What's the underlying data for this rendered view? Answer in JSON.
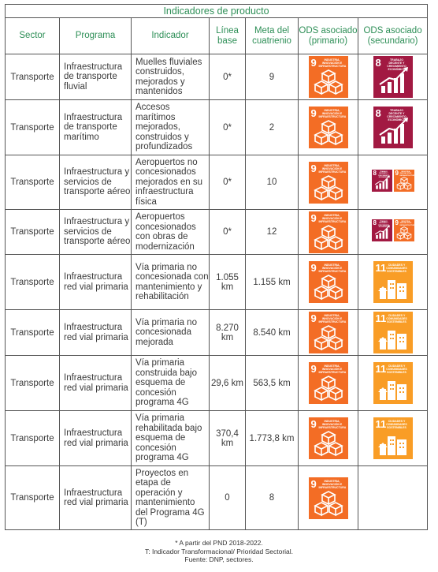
{
  "table": {
    "caption": "Indicadores de producto",
    "headers": {
      "sector": "Sector",
      "programa": "Programa",
      "indicador": "Indicador",
      "linea_base": "Línea base",
      "meta": "Meta del cuatrienio",
      "ods_primario": "ODS asociado (primario)",
      "ods_secundario": "ODS asociado (secundario)"
    },
    "rows": [
      {
        "sector": "Transporte",
        "programa": "Infraestructura de transporte fluvial",
        "indicador": "Muelles fluviales construidos, mejorados y mantenidos",
        "linea_base": "0*",
        "meta": "9",
        "primary": [
          "ods9"
        ],
        "secondary": [
          "ods8"
        ]
      },
      {
        "sector": "Transporte",
        "programa": "Infraestructura de transporte marítimo",
        "indicador": "Accesos marítimos mejorados, construidos y profundizados",
        "linea_base": "0*",
        "meta": "2",
        "primary": [
          "ods9"
        ],
        "secondary": [
          "ods8"
        ]
      },
      {
        "sector": "Transporte",
        "programa": "Infraestructura y servicios de transporte aéreo",
        "indicador": "Aeropuertos no concesionados mejorados en su infraestructura física",
        "linea_base": "0*",
        "meta": "10",
        "primary": [
          "ods9"
        ],
        "secondary": [
          "ods8",
          "ods9"
        ]
      },
      {
        "sector": "Transporte",
        "programa": "Infraestructura y servicios de transporte aéreo",
        "indicador": "Aeropuertos concesionados con obras de modernización",
        "linea_base": "0*",
        "meta": "12",
        "primary": [
          "ods9"
        ],
        "secondary": [
          "ods8",
          "ods9"
        ]
      },
      {
        "sector": "Transporte",
        "programa": "Infraestructura red vial primaria",
        "indicador": "Vía primaria no concesionada con mantenimiento y rehabilitación",
        "linea_base": "1.055 km",
        "meta": "1.155 km",
        "primary": [
          "ods9"
        ],
        "secondary": [
          "ods11"
        ]
      },
      {
        "sector": "Transporte",
        "programa": "Infraestructura red vial primaria",
        "indicador": "Vía primaria no concesionada mejorada",
        "linea_base": "8.270 km",
        "meta": "8.540 km",
        "primary": [
          "ods9"
        ],
        "secondary": [
          "ods11"
        ]
      },
      {
        "sector": "Transporte",
        "programa": "Infraestructura red vial primaria",
        "indicador": "Vía primaria construida bajo esquema de concesión programa 4G",
        "linea_base": "29,6 km",
        "meta": "563,5 km",
        "primary": [
          "ods9"
        ],
        "secondary": [
          "ods11"
        ]
      },
      {
        "sector": "Transporte",
        "programa": "Infraestructura red vial primaria",
        "indicador": "Vía primaria rehabilitada bajo esquema de concesión programa 4G",
        "linea_base": "370,4 km",
        "meta": "1.773,8 km",
        "primary": [
          "ods9"
        ],
        "secondary": [
          "ods11"
        ]
      },
      {
        "sector": "Transporte",
        "programa": "Infraestructura red vial primaria",
        "indicador": "Proyectos en etapa de operación y mantenimiento del Programa 4G (T)",
        "linea_base": "0",
        "meta": "8",
        "primary": [
          "ods9"
        ],
        "secondary": []
      }
    ]
  },
  "ods": {
    "ods9": {
      "number": "9",
      "title": "INDUSTRIA, INNOVACIÓN E INFRAESTRUCTURA",
      "color": "#f36d25",
      "icon": "cubes-icon"
    },
    "ods8": {
      "number": "8",
      "title": "TRABAJO DECENTE Y CRECIMIENTO ECONÓMICO",
      "color": "#a21942",
      "icon": "growth-chart-icon"
    },
    "ods11": {
      "number": "11",
      "title": "CIUDADES Y COMUNIDADES SOSTENIBLES",
      "color": "#f99d26",
      "icon": "city-icon"
    }
  },
  "notes": [
    "* A partir del PND 2018-2022.",
    "T: Indicador Transformacional/ Prioridad Sectorial.",
    "Fuente: DNP, sectores."
  ]
}
